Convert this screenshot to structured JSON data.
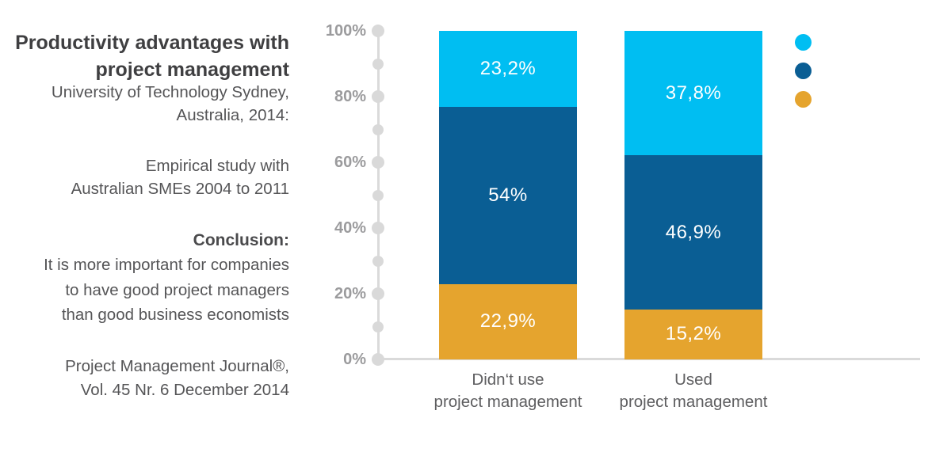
{
  "panel": {
    "title": "Productivity advantages with\nproject management",
    "source": "University of Technology Sydney,\nAustralia, 2014:",
    "study": "Empirical study with\nAustralian SMEs 2004 to 2011",
    "conclusion_label": "Conclusion:",
    "conclusion_text": "It is more important for companies\nto have good project managers\nthan good business economists",
    "reference": "Project Management Journal®,\nVol. 45 Nr. 6 December 2014"
  },
  "colors": {
    "light_blue": "#00BEF2",
    "dark_blue": "#0A5E94",
    "orange": "#E5A42E",
    "axis_gray": "#DADADA",
    "value_label": "#FFFFFF"
  },
  "chart_data": {
    "type": "bar",
    "stacked": true,
    "title": "Productivity advantages with project management",
    "categories": [
      "Didn‘t use\nproject management",
      "Used\nproject management"
    ],
    "series": [
      {
        "name": "top segment (light blue)",
        "color": "#00BEF2",
        "values": [
          23.2,
          37.8
        ],
        "labels": [
          "23,2%",
          "37,8%"
        ]
      },
      {
        "name": "middle segment (dark blue)",
        "color": "#0A5E94",
        "values": [
          54,
          46.9
        ],
        "labels": [
          "54%",
          "46,9%"
        ]
      },
      {
        "name": "bottom segment (orange)",
        "color": "#E5A42E",
        "values": [
          22.9,
          15.2
        ],
        "labels": [
          "22,9%",
          "15,2%"
        ]
      }
    ],
    "y_ticks": [
      "100%",
      "80%",
      "60%",
      "40%",
      "20%",
      "0%"
    ],
    "ylim": [
      0,
      100
    ],
    "grid": false,
    "legend_position": "right",
    "legend_dots": [
      "light blue",
      "dark blue",
      "orange"
    ]
  }
}
